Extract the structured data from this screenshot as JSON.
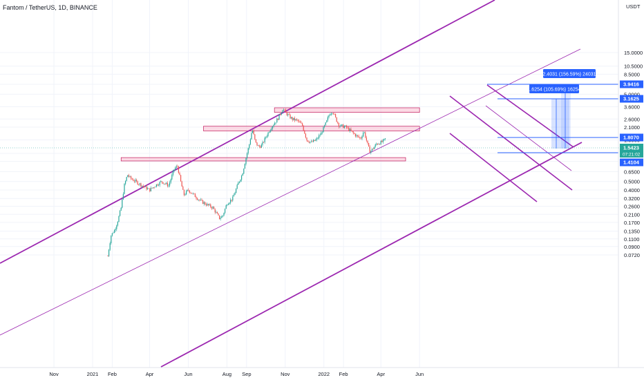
{
  "symbol_title": "Fantom / TetherUS, 1D, BINANCE",
  "currency_label": "USDT",
  "colors": {
    "up": "#26a69a",
    "down": "#ef5350",
    "channel": "#9c27b0",
    "zone_fill": "#f8bbd0",
    "zone_stroke": "#c2185b",
    "measure": "#2962ff",
    "last_price_bg": "#26a69a",
    "grid": "#f0f3fa",
    "axis_text": "#131722"
  },
  "chart_data": {
    "type": "candlestick",
    "title": "Fantom / TetherUS, 1D, BINANCE",
    "y_scale": "log",
    "y_axis_ticks": [
      "15.0000",
      "10.5000",
      "8.5000",
      "6.5000",
      "5.0000",
      "3.6000",
      "2.6000",
      "2.1000",
      "1.5000",
      "1.0500",
      "0.8500",
      "0.6500",
      "0.5000",
      "0.4000",
      "0.3200",
      "0.2600",
      "0.2100",
      "0.1700",
      "0.1350",
      "0.1100",
      "0.0900",
      "0.0720"
    ],
    "y_tick_values": [
      15.0,
      10.5,
      8.5,
      6.5,
      5.0,
      3.6,
      2.6,
      2.1,
      1.5,
      1.05,
      0.85,
      0.65,
      0.5,
      0.4,
      0.32,
      0.26,
      0.21,
      0.17,
      0.135,
      0.11,
      0.09,
      0.072
    ],
    "x_axis_ticks": [
      "Nov",
      "2021",
      "Feb",
      "Apr",
      "Jun",
      "Aug",
      "Sep",
      "Nov",
      "2022",
      "Feb",
      "Apr",
      "Jun"
    ],
    "price_path": [
      [
        "2021-01-25",
        0.07
      ],
      [
        "2021-01-30",
        0.12
      ],
      [
        "2021-02-05",
        0.14
      ],
      [
        "2021-02-10",
        0.18
      ],
      [
        "2021-02-15",
        0.25
      ],
      [
        "2021-02-20",
        0.45
      ],
      [
        "2021-02-25",
        0.6
      ],
      [
        "2021-03-01",
        0.55
      ],
      [
        "2021-03-10",
        0.5
      ],
      [
        "2021-03-20",
        0.45
      ],
      [
        "2021-04-01",
        0.4
      ],
      [
        "2021-04-10",
        0.45
      ],
      [
        "2021-04-20",
        0.5
      ],
      [
        "2021-05-01",
        0.45
      ],
      [
        "2021-05-10",
        0.7
      ],
      [
        "2021-05-15",
        0.75
      ],
      [
        "2021-05-20",
        0.5
      ],
      [
        "2021-05-25",
        0.35
      ],
      [
        "2021-06-01",
        0.4
      ],
      [
        "2021-06-10",
        0.35
      ],
      [
        "2021-06-20",
        0.3
      ],
      [
        "2021-07-01",
        0.27
      ],
      [
        "2021-07-10",
        0.25
      ],
      [
        "2021-07-20",
        0.19
      ],
      [
        "2021-07-25",
        0.2
      ],
      [
        "2021-08-01",
        0.28
      ],
      [
        "2021-08-10",
        0.32
      ],
      [
        "2021-08-20",
        0.5
      ],
      [
        "2021-08-25",
        0.6
      ],
      [
        "2021-09-01",
        1.0
      ],
      [
        "2021-09-05",
        1.3
      ],
      [
        "2021-09-10",
        2.0
      ],
      [
        "2021-09-15",
        1.4
      ],
      [
        "2021-09-20",
        1.25
      ],
      [
        "2021-09-25",
        1.3
      ],
      [
        "2021-10-01",
        1.6
      ],
      [
        "2021-10-10",
        2.1
      ],
      [
        "2021-10-20",
        2.6
      ],
      [
        "2021-10-28",
        3.4
      ],
      [
        "2021-11-05",
        2.9
      ],
      [
        "2021-11-12",
        2.6
      ],
      [
        "2021-11-20",
        2.5
      ],
      [
        "2021-11-28",
        2.2
      ],
      [
        "2021-12-05",
        1.5
      ],
      [
        "2021-12-12",
        1.4
      ],
      [
        "2021-12-20",
        1.5
      ],
      [
        "2021-12-28",
        1.8
      ],
      [
        "2022-01-05",
        2.4
      ],
      [
        "2022-01-10",
        3.0
      ],
      [
        "2022-01-15",
        3.2
      ],
      [
        "2022-01-20",
        2.6
      ],
      [
        "2022-01-25",
        2.2
      ],
      [
        "2022-02-05",
        2.1
      ],
      [
        "2022-02-12",
        1.9
      ],
      [
        "2022-02-20",
        1.7
      ],
      [
        "2022-02-28",
        1.55
      ],
      [
        "2022-03-05",
        1.9
      ],
      [
        "2022-03-08",
        1.6
      ],
      [
        "2022-03-12",
        1.25
      ],
      [
        "2022-03-15",
        1.1
      ],
      [
        "2022-03-20",
        1.2
      ],
      [
        "2022-03-25",
        1.35
      ],
      [
        "2022-04-01",
        1.4
      ],
      [
        "2022-04-05",
        1.45
      ],
      [
        "2022-04-08",
        1.5423
      ]
    ],
    "last_price": 1.5423
  },
  "price_labels": {
    "l_39416": "3.9416",
    "l_31625": "3.1625",
    "l_18070": "1.8070",
    "l_last": "1.5423",
    "l_countdown": "07:21:02",
    "l_14104": "1.4104"
  },
  "measure_labels": {
    "upper": "2.4031 (156.59%) 24031",
    "lower": "1.6254 (105.69%) 16254"
  }
}
